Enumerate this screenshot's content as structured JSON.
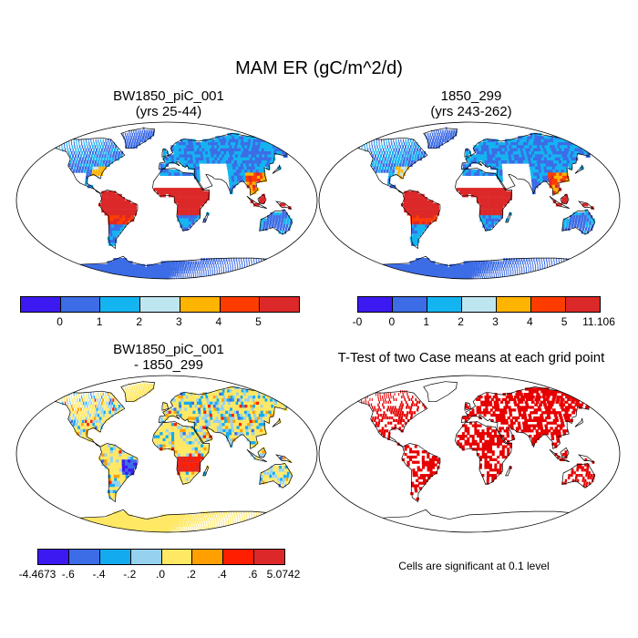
{
  "title": "MAM ER (gC/m^2/d)",
  "panels": [
    {
      "title_line1": "BW1850_piC_001",
      "title_line2": "(yrs 25-44)"
    },
    {
      "title_line1": "1850_299",
      "title_line2": "(yrs 243-262)"
    },
    {
      "title_line1": "BW1850_piC_001",
      "title_line2": "- 1850_299"
    },
    {
      "title_line1": "T-Test of two Case means at each grid point",
      "title_line2": ""
    }
  ],
  "colorbars": {
    "panel1": {
      "colors": [
        "#3c19f0",
        "#3c6ce6",
        "#14b4f0",
        "#bee6f0",
        "#ffb400",
        "#ff3c00",
        "#dc2828"
      ],
      "labels": [
        "0",
        "1",
        "2",
        "3",
        "4",
        "5"
      ]
    },
    "panel2": {
      "colors": [
        "#3c19f0",
        "#3c6ce6",
        "#14b4f0",
        "#bee6f0",
        "#ffb400",
        "#ff3c00",
        "#dc2828"
      ],
      "labels": [
        "-0",
        "0",
        "1",
        "2",
        "3",
        "4",
        "5",
        "11.106"
      ]
    },
    "panel3": {
      "colors": [
        "#3c19f0",
        "#3c6ce6",
        "#14aaf0",
        "#96d2f0",
        "#ffe864",
        "#ffa000",
        "#ff1e00",
        "#dc2828"
      ],
      "labels": [
        "-4.4673",
        "-.6",
        "-.4",
        "-.2",
        ".0",
        ".2",
        ".4",
        ".6",
        "5.0742"
      ]
    }
  },
  "significance_note": "Cells are significant at 0.1 level",
  "colors": {
    "ocean": "#ffffff",
    "coast": "#000000",
    "sig_cells": "#e60000"
  }
}
